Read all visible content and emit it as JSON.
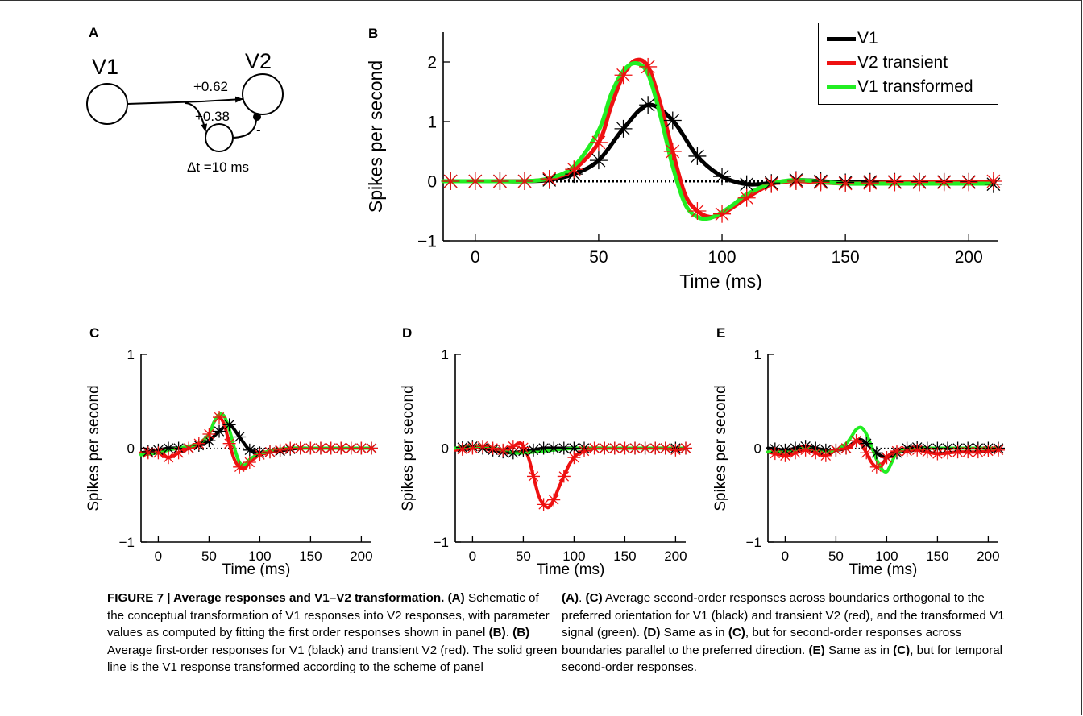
{
  "panel_a": {
    "letter": "A",
    "v1_label": "V1",
    "v2_label": "V2",
    "weight_direct": "+0.62",
    "weight_indirect": "+0.38",
    "inhibitory_sign": "-",
    "delay_label": "Δt =10 ms"
  },
  "chart_data": [
    {
      "type": "line",
      "panel": "B",
      "ylabel": "Spikes per second",
      "xlabel": "Time (ms)",
      "xlim": [
        -13,
        212
      ],
      "ylim": [
        -1,
        2.5
      ],
      "xticks": [
        0,
        50,
        100,
        150,
        200
      ],
      "yticks": [
        -1,
        0,
        1,
        2
      ],
      "legend": "top-right",
      "zero_line": "dotted",
      "series": [
        {
          "name": "V1",
          "color": "#000000",
          "x": [
            -13,
            0,
            10,
            20,
            30,
            40,
            50,
            60,
            70,
            80,
            90,
            100,
            110,
            120,
            130,
            140,
            150,
            160,
            170,
            180,
            190,
            200,
            210
          ],
          "y": [
            0,
            0,
            0,
            0,
            0.02,
            0.12,
            0.35,
            0.88,
            1.28,
            1.02,
            0.42,
            0.08,
            -0.05,
            -0.03,
            0.02,
            0,
            -0.02,
            -0.01,
            -0.01,
            -0.01,
            -0.01,
            -0.01,
            -0.05
          ]
        },
        {
          "name": "V2 transient",
          "color": "#ee1111",
          "x": [
            -13,
            0,
            10,
            20,
            30,
            40,
            50,
            55,
            60,
            65,
            70,
            75,
            80,
            85,
            90,
            95,
            100,
            105,
            110,
            120,
            130,
            140,
            150,
            160,
            170,
            180,
            190,
            200,
            210
          ],
          "y": [
            0,
            0,
            0,
            0,
            0.04,
            0.2,
            0.65,
            1.25,
            1.78,
            2.03,
            1.92,
            1.3,
            0.5,
            -0.22,
            -0.5,
            -0.6,
            -0.55,
            -0.42,
            -0.28,
            -0.05,
            0,
            -0.02,
            -0.04,
            -0.03,
            -0.02,
            -0.02,
            -0.02,
            -0.02,
            0
          ]
        },
        {
          "name": "V1 transformed",
          "color": "#22ee22",
          "x": [
            -13,
            0,
            10,
            20,
            30,
            40,
            50,
            55,
            60,
            65,
            70,
            75,
            80,
            85,
            90,
            95,
            100,
            105,
            110,
            120,
            130,
            140,
            150,
            160,
            170,
            180,
            190,
            200,
            210
          ],
          "y": [
            0,
            0,
            0,
            0,
            0.05,
            0.25,
            0.85,
            1.45,
            1.85,
            1.98,
            1.8,
            1.1,
            0.25,
            -0.38,
            -0.6,
            -0.62,
            -0.52,
            -0.38,
            -0.22,
            -0.04,
            0.02,
            -0.01,
            -0.04,
            -0.04,
            -0.04,
            -0.04,
            -0.04,
            -0.04,
            -0.04
          ]
        }
      ]
    },
    {
      "type": "line",
      "panel": "C",
      "ylabel": "Spikes per second",
      "xlabel": "Time (ms)",
      "xlim": [
        -17,
        210
      ],
      "ylim": [
        -1,
        1
      ],
      "xticks": [
        0,
        50,
        100,
        150,
        200
      ],
      "yticks": [
        -1,
        0,
        1
      ],
      "zero_line": "dotted",
      "series": [
        {
          "name": "V1",
          "color": "#000000",
          "x": [
            -17,
            0,
            10,
            20,
            30,
            40,
            50,
            60,
            70,
            80,
            90,
            100,
            110,
            120,
            130,
            140,
            150,
            160,
            170,
            180,
            190,
            200,
            210
          ],
          "y": [
            -0.05,
            -0.02,
            0,
            0,
            0,
            0.03,
            0.08,
            0.18,
            0.25,
            0.12,
            -0.02,
            -0.05,
            -0.04,
            -0.03,
            -0.01,
            0,
            0,
            0,
            0,
            0,
            0,
            0,
            0
          ]
        },
        {
          "name": "V2 transient",
          "color": "#ee1111",
          "x": [
            -17,
            0,
            10,
            20,
            30,
            40,
            50,
            55,
            60,
            65,
            70,
            75,
            80,
            85,
            90,
            100,
            110,
            120,
            130,
            140,
            150,
            160,
            170,
            180,
            190,
            200,
            210
          ],
          "y": [
            -0.05,
            -0.05,
            -0.1,
            -0.05,
            0,
            0.05,
            0.15,
            0.28,
            0.33,
            0.25,
            0.05,
            -0.12,
            -0.2,
            -0.22,
            -0.15,
            -0.07,
            -0.04,
            -0.02,
            0,
            0,
            0,
            0,
            0,
            0,
            0,
            0,
            0
          ]
        },
        {
          "name": "V1 transformed",
          "color": "#22ee22",
          "x": [
            -17,
            0,
            10,
            20,
            30,
            40,
            50,
            55,
            60,
            65,
            70,
            75,
            80,
            85,
            90,
            100,
            110,
            120,
            130,
            140,
            150,
            160,
            170,
            180,
            190,
            200,
            210
          ],
          "y": [
            -0.07,
            -0.05,
            -0.02,
            0,
            0.02,
            0.05,
            0.15,
            0.28,
            0.36,
            0.34,
            0.2,
            0,
            -0.15,
            -0.18,
            -0.12,
            -0.06,
            -0.03,
            -0.01,
            0,
            0,
            0,
            0,
            0,
            0,
            0,
            0,
            0
          ]
        }
      ]
    },
    {
      "type": "line",
      "panel": "D",
      "ylabel": "Spikes per second",
      "xlabel": "Time (ms)",
      "xlim": [
        -17,
        210
      ],
      "ylim": [
        -1,
        1
      ],
      "xticks": [
        0,
        50,
        100,
        150,
        200
      ],
      "yticks": [
        -1,
        0,
        1
      ],
      "zero_line": "dotted",
      "series": [
        {
          "name": "V1",
          "color": "#000000",
          "x": [
            -17,
            0,
            10,
            20,
            30,
            40,
            50,
            60,
            70,
            80,
            90,
            100,
            110,
            120,
            130,
            140,
            150,
            160,
            170,
            180,
            190,
            200,
            210
          ],
          "y": [
            0,
            0.02,
            0,
            -0.02,
            -0.04,
            -0.05,
            -0.03,
            -0.02,
            0,
            0,
            0,
            0,
            0,
            0,
            0,
            0,
            0,
            0,
            0,
            0,
            0,
            0,
            0
          ]
        },
        {
          "name": "V2 transient",
          "color": "#ee1111",
          "x": [
            -17,
            0,
            10,
            20,
            30,
            40,
            48,
            55,
            60,
            65,
            70,
            75,
            80,
            85,
            90,
            95,
            100,
            105,
            110,
            120,
            130,
            140,
            150,
            160,
            170,
            180,
            190,
            200,
            210
          ],
          "y": [
            -0.02,
            0,
            0.02,
            0,
            -0.02,
            0.02,
            0.05,
            -0.1,
            -0.3,
            -0.5,
            -0.6,
            -0.63,
            -0.55,
            -0.42,
            -0.3,
            -0.18,
            -0.1,
            -0.05,
            -0.03,
            0,
            0,
            0,
            0,
            0,
            0,
            0,
            0,
            -0.02,
            0
          ]
        },
        {
          "name": "V1 transformed",
          "color": "#22ee22",
          "x": [
            -17,
            0,
            10,
            20,
            30,
            40,
            50,
            60,
            70,
            80,
            90,
            100,
            110,
            120,
            130,
            140,
            150,
            160,
            170,
            180,
            190,
            200,
            210
          ],
          "y": [
            0,
            0.02,
            0.01,
            0,
            -0.02,
            -0.05,
            -0.05,
            -0.04,
            -0.03,
            -0.02,
            -0.01,
            0,
            0,
            0,
            0,
            0,
            0,
            0,
            0,
            0,
            0,
            0,
            0
          ]
        }
      ]
    },
    {
      "type": "line",
      "panel": "E",
      "ylabel": "Spikes per second",
      "xlabel": "Time (ms)",
      "xlim": [
        -17,
        210
      ],
      "ylim": [
        -1,
        1
      ],
      "xticks": [
        0,
        50,
        100,
        150,
        200
      ],
      "yticks": [
        -1,
        0,
        1
      ],
      "zero_line": "dotted",
      "series": [
        {
          "name": "V1",
          "color": "#000000",
          "x": [
            -17,
            0,
            10,
            20,
            30,
            40,
            50,
            60,
            70,
            75,
            80,
            90,
            100,
            110,
            120,
            130,
            140,
            150,
            160,
            170,
            180,
            190,
            200,
            210
          ],
          "y": [
            0,
            -0.02,
            0,
            0.02,
            0,
            -0.02,
            -0.02,
            0,
            0.08,
            0.09,
            0.05,
            -0.05,
            -0.1,
            -0.05,
            0,
            0.01,
            0,
            0,
            0,
            0,
            0,
            0,
            0,
            0
          ]
        },
        {
          "name": "V2 transient",
          "color": "#ee1111",
          "x": [
            -17,
            0,
            10,
            20,
            30,
            40,
            50,
            60,
            65,
            70,
            75,
            80,
            85,
            90,
            95,
            100,
            105,
            110,
            120,
            130,
            140,
            150,
            160,
            170,
            180,
            190,
            200,
            210
          ],
          "y": [
            -0.04,
            -0.08,
            -0.05,
            -0.02,
            -0.05,
            -0.08,
            -0.02,
            0,
            0.02,
            0.08,
            0.05,
            -0.05,
            -0.15,
            -0.2,
            -0.18,
            -0.1,
            -0.05,
            -0.03,
            -0.03,
            -0.02,
            -0.04,
            -0.06,
            -0.05,
            -0.04,
            -0.04,
            -0.04,
            -0.03,
            -0.02
          ]
        },
        {
          "name": "V1 transformed",
          "color": "#22ee22",
          "x": [
            -17,
            0,
            10,
            20,
            30,
            40,
            50,
            60,
            65,
            70,
            75,
            80,
            85,
            90,
            95,
            100,
            105,
            110,
            120,
            130,
            140,
            150,
            160,
            170,
            180,
            190,
            200,
            210
          ],
          "y": [
            -0.04,
            -0.04,
            -0.02,
            0,
            -0.02,
            -0.03,
            -0.02,
            0.05,
            0.12,
            0.2,
            0.22,
            0.15,
            0.02,
            -0.12,
            -0.22,
            -0.25,
            -0.15,
            -0.05,
            -0.01,
            0,
            0,
            0,
            0,
            0,
            0,
            0,
            0,
            0
          ]
        }
      ]
    }
  ],
  "caption": {
    "figure_label": "FIGURE 7 | Average responses and V1–V2 transformation.",
    "a_tag": "(A)",
    "a_text": " Schematic of the conceptual transformation of V1 responses into V2 responses, with parameter values as computed by fitting the first order responses shown in panel ",
    "b_ref": "(B)",
    "sep1": ". ",
    "b_tag": "(B)",
    "b_text": " Average first-order responses for V1 (black) and transient V2 (red). The solid green line is the V1 response transformed according to the scheme of panel ",
    "a_ref": "(A)",
    "sep2": ". ",
    "c_tag": "(C)",
    "c_text": " Average second-order responses across boundaries orthogonal to the preferred orientation for V1 (black) and transient V2 (red), and the transformed V1 signal (green). ",
    "d_tag": "(D)",
    "d_text": " Same as in ",
    "c_ref1": "(C)",
    "d_text2": ", but for second-order responses across boundaries parallel to the preferred direction. ",
    "e_tag": "(E)",
    "e_text": " Same as in ",
    "c_ref2": "(C)",
    "e_text2": ", but for temporal second-order responses."
  }
}
